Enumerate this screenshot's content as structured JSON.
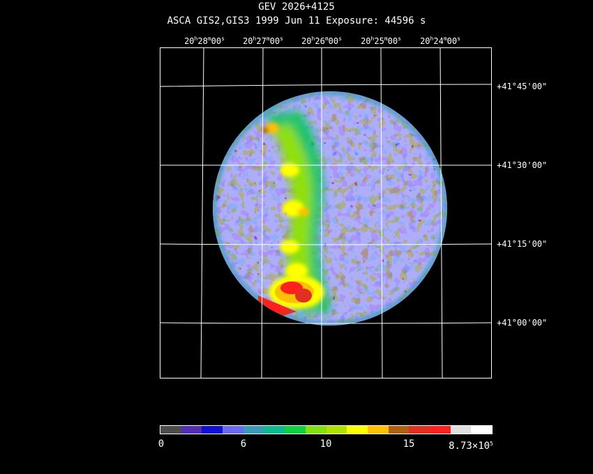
{
  "header": {
    "title": "GEV 2026+4125",
    "subtitle": "ASCA GIS2,GIS3   1999 Jun 11    Exposure: 44596 s"
  },
  "axes": {
    "ra_labels": [
      {
        "h": "20",
        "m": "28",
        "s": "00"
      },
      {
        "h": "20",
        "m": "27",
        "s": "00"
      },
      {
        "h": "20",
        "m": "26",
        "s": "00"
      },
      {
        "h": "20",
        "m": "25",
        "s": "00"
      },
      {
        "h": "20",
        "m": "24",
        "s": "00"
      }
    ],
    "ra_units": {
      "h": "h",
      "m": "m",
      "s": "s"
    },
    "dec_labels": [
      "+41°45'00\"",
      "+41°30'00\"",
      "+41°15'00\"",
      "+41°00'00\""
    ]
  },
  "colorbar": {
    "colors": [
      "#4d4d4d",
      "#5030b0",
      "#1010d0",
      "#6a6af0",
      "#3a9ab8",
      "#10b890",
      "#10d040",
      "#80e010",
      "#b0e000",
      "#ffff00",
      "#ffc000",
      "#b06010",
      "#e03020",
      "#ff2020",
      "#e0e0e0",
      "#ffffff"
    ],
    "labels": [
      "0",
      "6",
      "10",
      "15"
    ],
    "max_base": "8.73×10",
    "max_exp": "5"
  }
}
